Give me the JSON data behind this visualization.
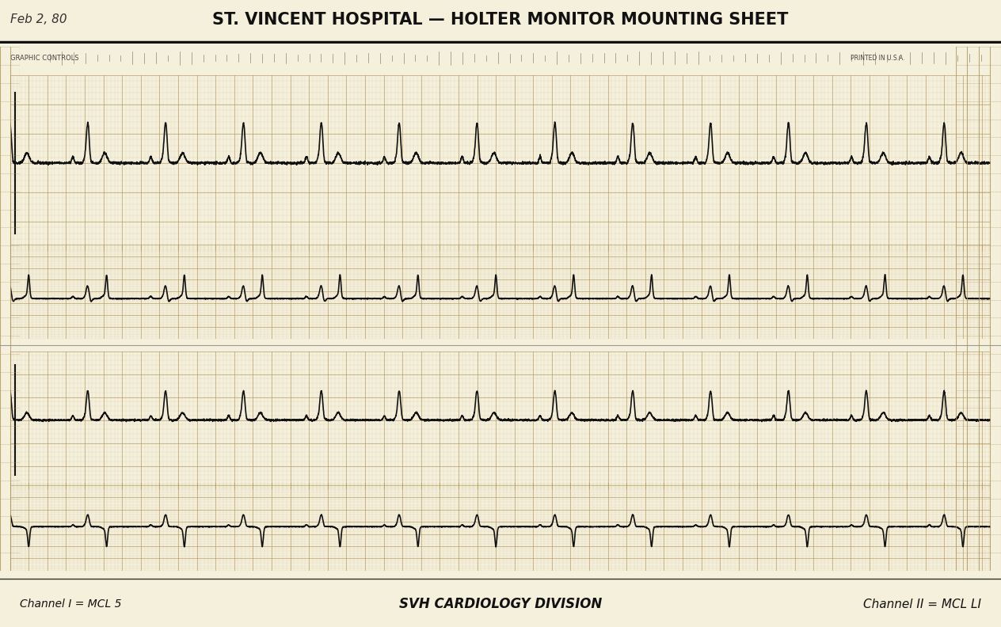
{
  "title": "ST. VINCENT HOSPITAL — HOLTER MONITOR MOUNTING SHEET",
  "title_prefix": "Feb 2, 80",
  "bottom_left": "Channel I = MCL 5",
  "bottom_center": "SVH CARDIOLOGY DIVISION",
  "bottom_right": "Channel II = MCL LI",
  "bg_color": "#f5f0dc",
  "grid_minor_color": "#c8b88a",
  "grid_major_color": "#b0955a",
  "ecg_color": "#111111",
  "fig_width": 12.64,
  "fig_height": 7.92,
  "strip_header_text": "GRAPHIC CONTROLS",
  "header_bar_color": "#222222"
}
